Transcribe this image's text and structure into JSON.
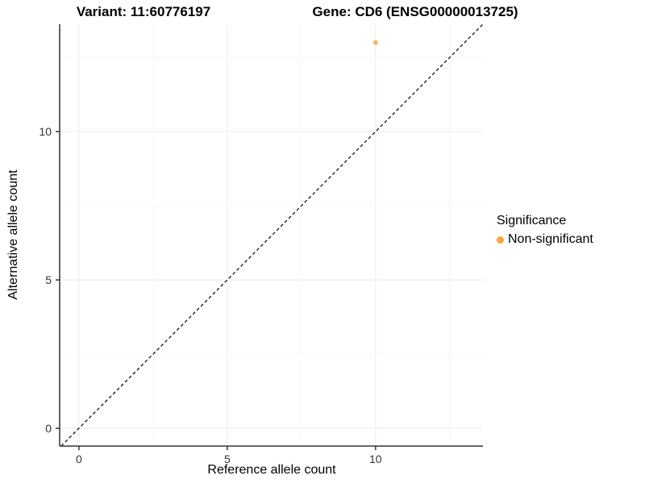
{
  "titles": {
    "variant": "Variant: 11:60776197",
    "gene": "Gene: CD6 (ENSG00000013725)"
  },
  "legend": {
    "title": "Significance",
    "items": [
      {
        "label": "Non-significant",
        "color": "#FCA338"
      }
    ]
  },
  "chart_data": {
    "type": "scatter",
    "title_left": "Variant: 11:60776197",
    "title_right": "Gene: CD6 (ENSG00000013725)",
    "xlabel": "Reference allele count",
    "ylabel": "Alternative allele count",
    "xlim": [
      -0.65,
      13.62
    ],
    "ylim": [
      -0.6,
      13.62
    ],
    "x_ticks": [
      0,
      5,
      10
    ],
    "x_tick_labels": [
      "0",
      "5",
      "10"
    ],
    "y_ticks": [
      0,
      5,
      10
    ],
    "y_tick_labels": [
      "0",
      "5",
      "10"
    ],
    "x_minor_ticks": [
      2.5,
      7.5,
      12.5
    ],
    "y_minor_ticks": [
      2.5,
      7.5,
      12.5
    ],
    "grid": "very faint major and minor gridlines on white background",
    "legend_position": "right",
    "series": [
      {
        "name": "Non-significant",
        "color": "#FCA338",
        "point_opacity": 0.8,
        "points": [
          {
            "x": 10,
            "y": 13
          }
        ]
      }
    ],
    "reference_line": {
      "type": "identity (y = x)",
      "style": "dashed",
      "color": "#000000"
    }
  },
  "colors": {
    "background": "#FFFFFF",
    "axis_line": "#333333",
    "tick_mark": "#333333",
    "tick_label": "#333333",
    "grid_major": "#EBEBEB",
    "grid_minor": "#F6F6F6"
  }
}
